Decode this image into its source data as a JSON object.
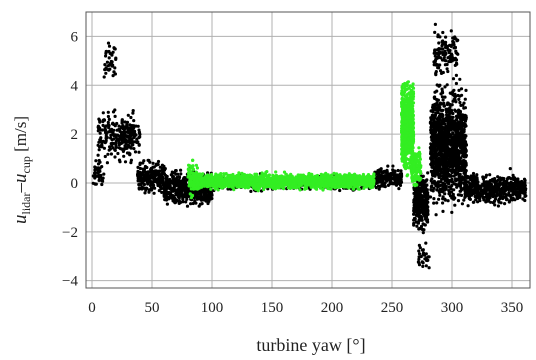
{
  "chart_data": {
    "type": "scatter",
    "title": "",
    "xlabel": "turbine yaw [°]",
    "ylabel": {
      "u1": "u",
      "sub1": "lidar",
      "dash": "–",
      "u2": "u",
      "sub2": "cup",
      "unit": " [m/s]"
    },
    "xlim": [
      -5,
      365
    ],
    "ylim": [
      -4.3,
      7
    ],
    "xticks": [
      "0",
      "50",
      "100",
      "150",
      "200",
      "250",
      "300",
      "350"
    ],
    "yticks": [
      "−4",
      "−2",
      "0",
      "2",
      "4",
      "6"
    ],
    "grid": true,
    "colors": {
      "series_black": "#000000",
      "series_green": "#33ee22",
      "grid": "#b0b0b0",
      "frame": "#555555"
    },
    "series": [
      {
        "color": "black",
        "clusters": [
          {
            "x": [
              0,
              10
            ],
            "y": [
              -0.5,
              1.2
            ],
            "n": 40
          },
          {
            "x": [
              5,
              35
            ],
            "y": [
              0.3,
              3.5
            ],
            "n": 200
          },
          {
            "x": [
              10,
              20
            ],
            "y": [
              3.5,
              6.5
            ],
            "n": 40
          },
          {
            "x": [
              25,
              40
            ],
            "y": [
              1.0,
              3.0
            ],
            "n": 60
          },
          {
            "x": [
              38,
              60
            ],
            "y": [
              -0.8,
              1.2
            ],
            "n": 240
          },
          {
            "x": [
              60,
              100
            ],
            "y": [
              -1.3,
              0.9
            ],
            "n": 520
          },
          {
            "x": [
              100,
              240
            ],
            "y": [
              -0.45,
              0.45
            ],
            "n": 400
          },
          {
            "x": [
              235,
              258
            ],
            "y": [
              -0.4,
              0.8
            ],
            "n": 180
          },
          {
            "x": [
              268,
              280
            ],
            "y": [
              -2.5,
              1.0
            ],
            "n": 320
          },
          {
            "x": [
              272,
              282
            ],
            "y": [
              -4.0,
              -2.0
            ],
            "n": 30
          },
          {
            "x": [
              282,
              312
            ],
            "y": [
              -2.0,
              5.0
            ],
            "n": 1300
          },
          {
            "x": [
              285,
              305
            ],
            "y": [
              4.0,
              6.7
            ],
            "n": 120
          },
          {
            "x": [
              310,
              362
            ],
            "y": [
              -1.2,
              0.7
            ],
            "n": 500
          }
        ]
      },
      {
        "color": "green",
        "clusters": [
          {
            "x": [
              80,
              88
            ],
            "y": [
              -0.9,
              1.3
            ],
            "n": 80
          },
          {
            "x": [
              85,
              235
            ],
            "y": [
              -0.4,
              0.55
            ],
            "n": 2200
          },
          {
            "x": [
              258,
              268
            ],
            "y": [
              -0.3,
              5.0
            ],
            "n": 700
          },
          {
            "x": [
              266,
              274
            ],
            "y": [
              -0.5,
              1.8
            ],
            "n": 150
          }
        ]
      }
    ]
  }
}
